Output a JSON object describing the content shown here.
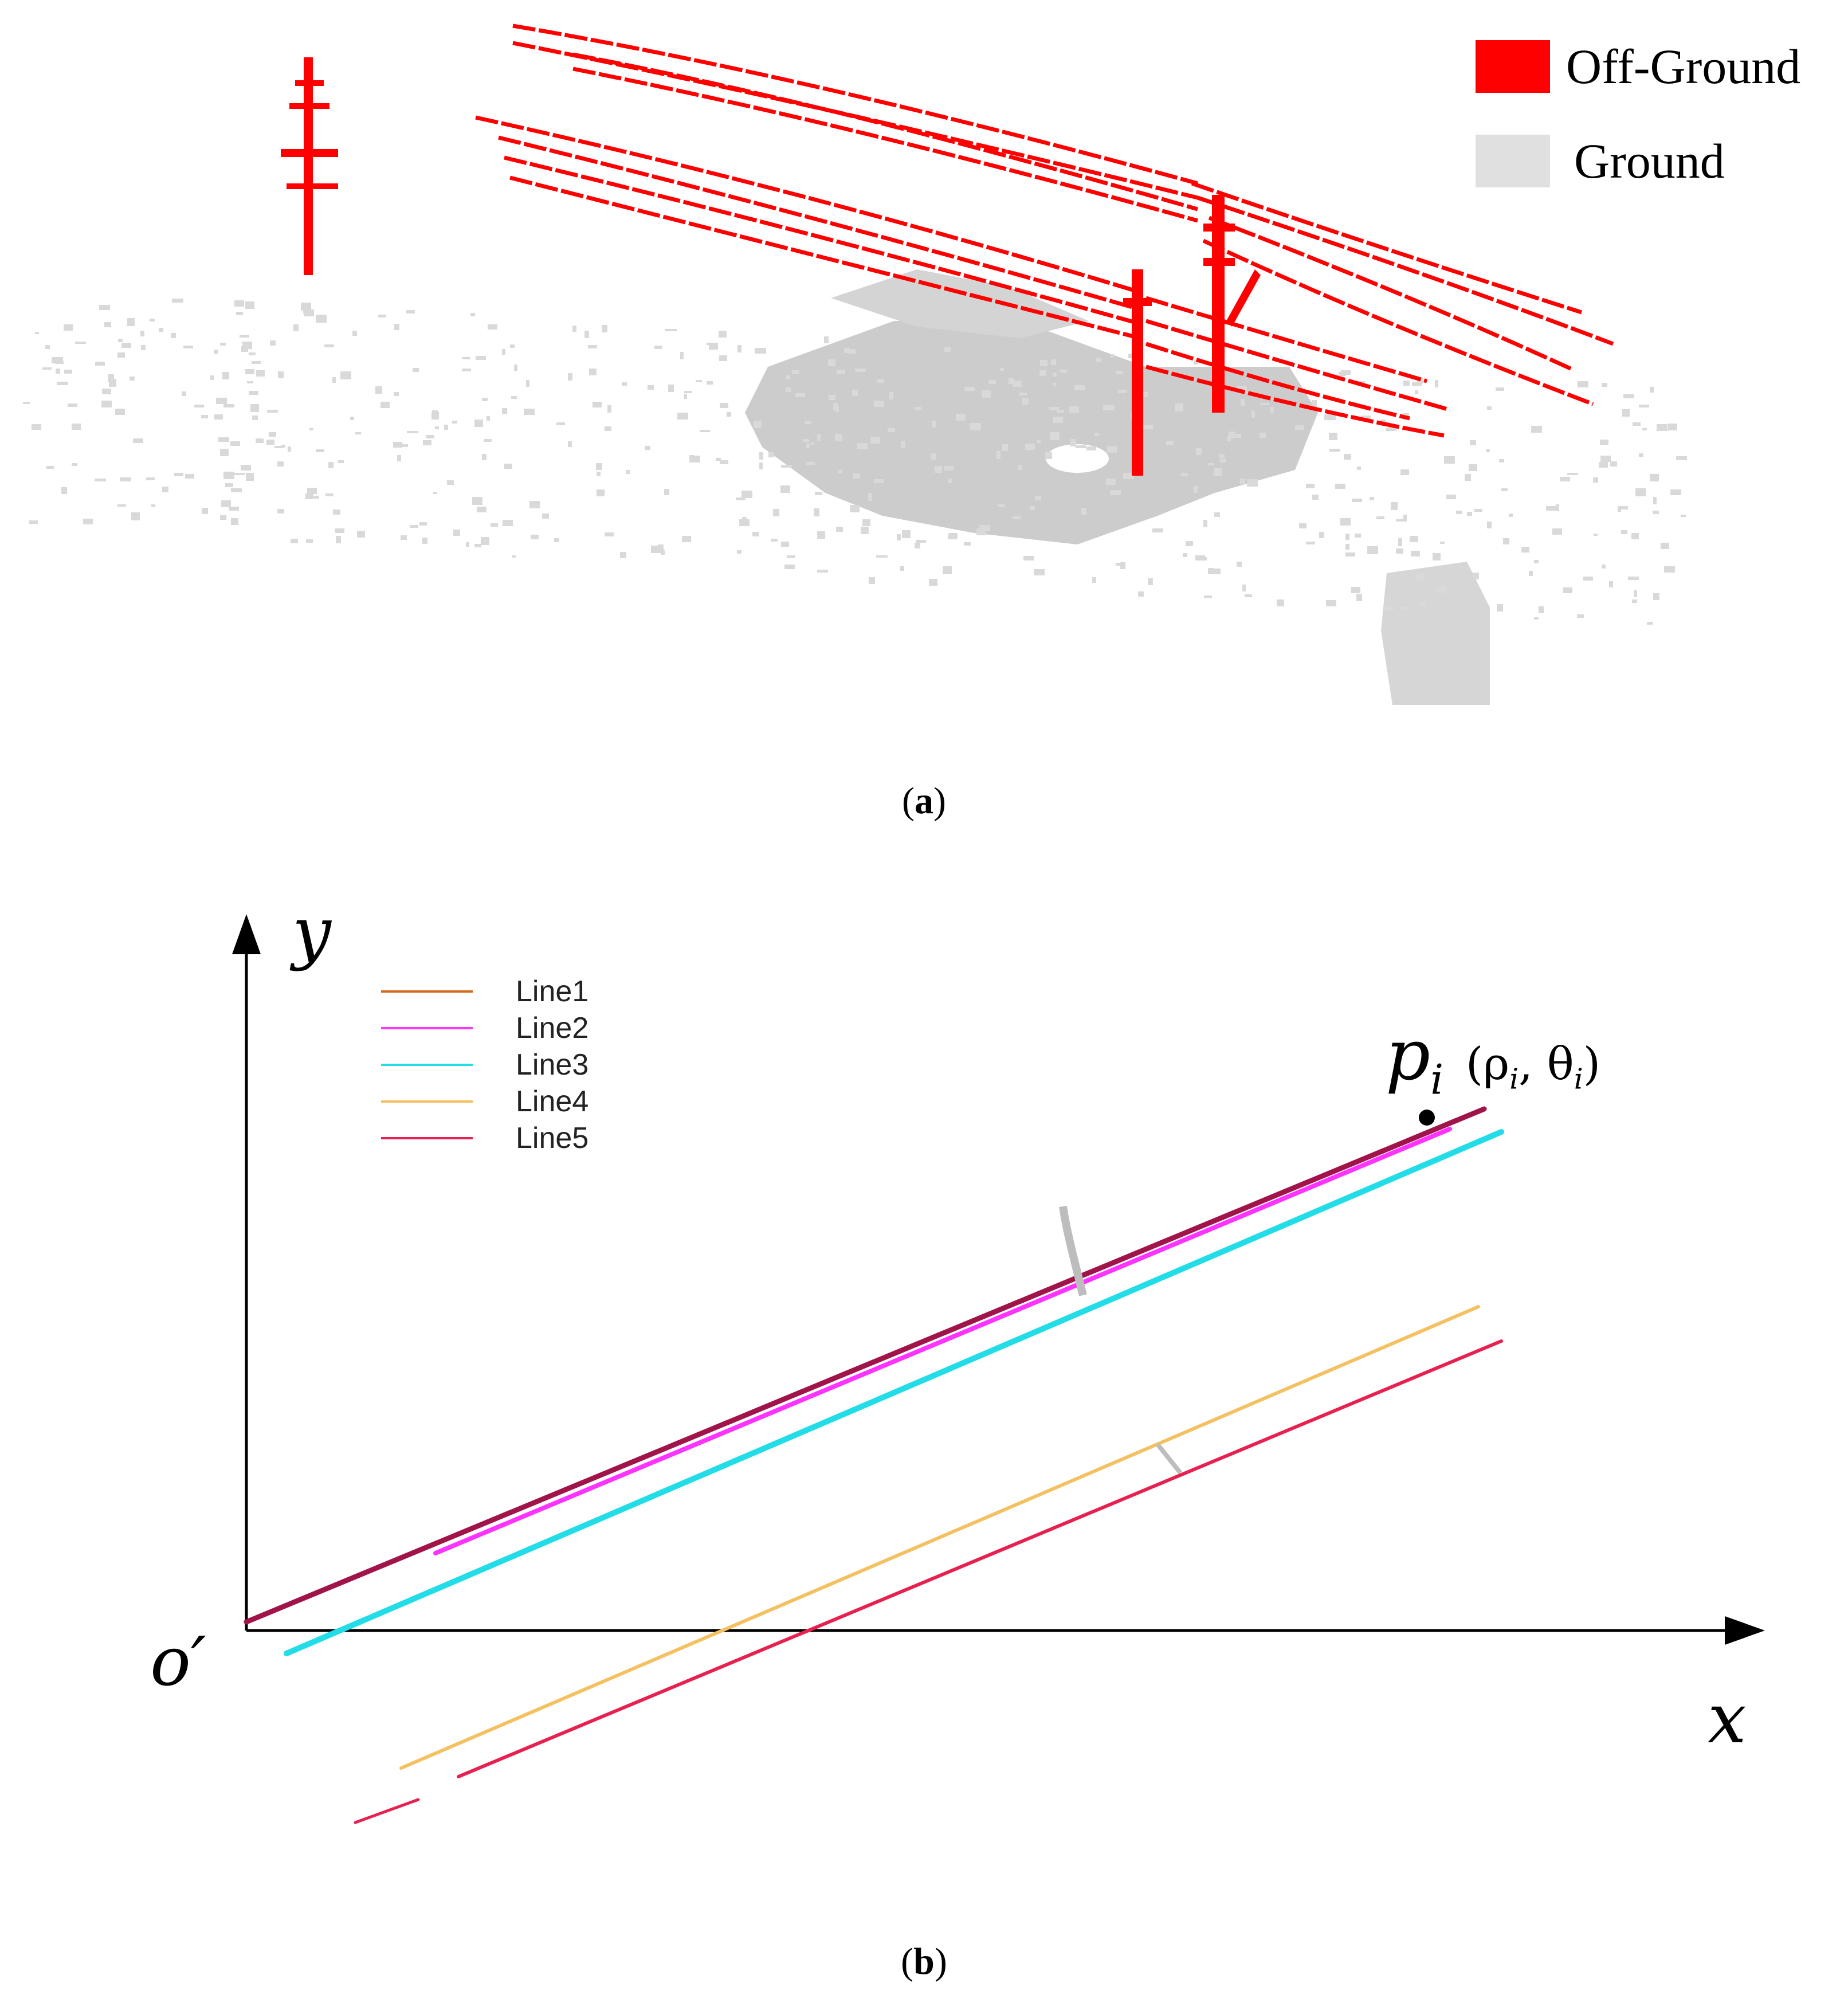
{
  "panel_a": {
    "legend": [
      {
        "label": "Off-Ground",
        "color": "#ff0000"
      },
      {
        "label": "Ground",
        "color": "#e0e0e0"
      }
    ],
    "caption_letter": "a"
  },
  "panel_b": {
    "axes": {
      "y_label": "y",
      "x_label": "x",
      "origin_label": "o′"
    },
    "point": {
      "name": "p",
      "subscript": "i",
      "coords": "(ρ",
      "sub1": "i",
      "sep": ", θ",
      "sub2": "i",
      "close": ")"
    },
    "legend": [
      {
        "label": "Line1",
        "color": "#d2691e"
      },
      {
        "label": "Line2",
        "color": "#ff33ff"
      },
      {
        "label": "Line3",
        "color": "#22dde8"
      },
      {
        "label": "Line4",
        "color": "#f5c060"
      },
      {
        "label": "Line5",
        "color": "#e8204f"
      }
    ],
    "caption_letter": "b"
  },
  "colors": {
    "off_ground": "#ff0000",
    "ground": "#d9d9d9",
    "line1_dark": "#a0144a"
  }
}
